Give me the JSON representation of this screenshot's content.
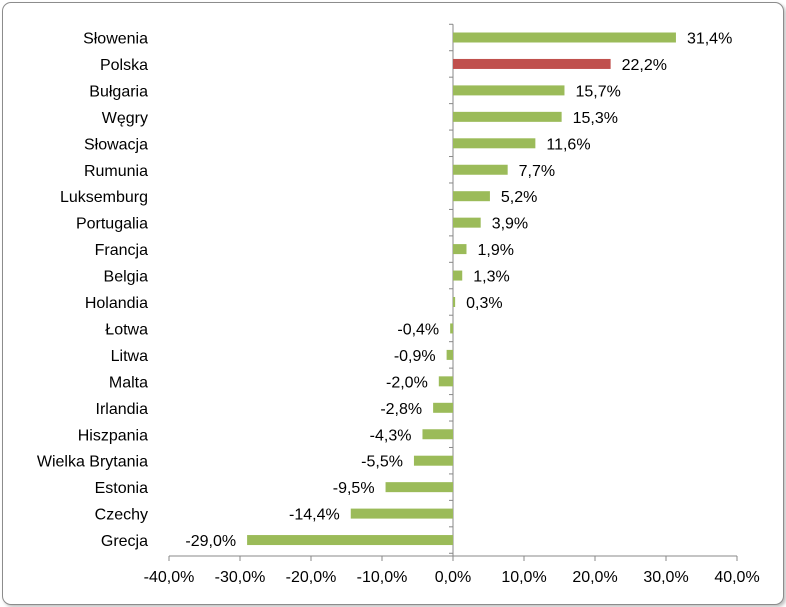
{
  "chart_data": {
    "type": "bar",
    "orientation": "horizontal",
    "categories": [
      "Słowenia",
      "Polska",
      "Bułgaria",
      "Węgry",
      "Słowacja",
      "Rumunia",
      "Luksemburg",
      "Portugalia",
      "Francja",
      "Belgia",
      "Holandia",
      "Łotwa",
      "Litwa",
      "Malta",
      "Irlandia",
      "Hiszpania",
      "Wielka Brytania",
      "Estonia",
      "Czechy",
      "Grecja"
    ],
    "values": [
      31.4,
      22.2,
      15.7,
      15.3,
      11.6,
      7.7,
      5.2,
      3.9,
      1.9,
      1.3,
      0.3,
      -0.4,
      -0.9,
      -2.0,
      -2.8,
      -4.3,
      -5.5,
      -9.5,
      -14.4,
      -29.0
    ],
    "data_labels": [
      "31,4%",
      "22,2%",
      "15,7%",
      "15,3%",
      "11,6%",
      "7,7%",
      "5,2%",
      "3,9%",
      "1,9%",
      "1,3%",
      "0,3%",
      "-0,4%",
      "-0,9%",
      "-2,0%",
      "-2,8%",
      "-4,3%",
      "-5,5%",
      "-9,5%",
      "-14,4%",
      "-29,0%"
    ],
    "xlim": [
      -40,
      40
    ],
    "x_ticks": [
      -40,
      -30,
      -20,
      -10,
      0,
      10,
      20,
      30,
      40
    ],
    "x_tick_labels": [
      "-40,0%",
      "-30,0%",
      "-20,0%",
      "-10,0%",
      "0,0%",
      "10,0%",
      "20,0%",
      "30,0%",
      "40,0%"
    ],
    "grid": false,
    "legend": "none",
    "colors": {
      "default": "#9BBB59",
      "highlight": "#C0504D",
      "highlight_category": "Polska"
    }
  }
}
